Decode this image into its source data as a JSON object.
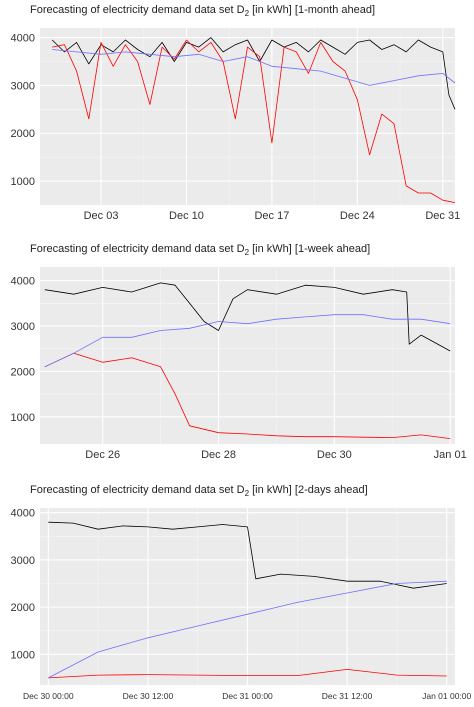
{
  "chart_data": [
    {
      "type": "line",
      "title": "Forecasting of electricity demand data set D",
      "title_sub": "2",
      "title_rest": " [in kWh] [1-month ahead]",
      "x_type": "date",
      "xlim": [
        "2023-11-28",
        "2024-01-01"
      ],
      "xticks": [
        "2023-12-03",
        "2023-12-10",
        "2023-12-17",
        "2023-12-24",
        "2023-12-31"
      ],
      "xtick_labels": [
        "Dec 03",
        "Dec 10",
        "Dec 17",
        "Dec 24",
        "Dec 31"
      ],
      "ylim": [
        500,
        4200
      ],
      "yticks": [
        1000,
        2000,
        3000,
        4000
      ],
      "grid": true,
      "legend": "none",
      "series": [
        {
          "color": "#000000",
          "points": [
            [
              "2023-11-29",
              3950
            ],
            [
              "2023-11-30",
              3700
            ],
            [
              "2023-12-01",
              3900
            ],
            [
              "2023-12-02",
              3450
            ],
            [
              "2023-12-03",
              3850
            ],
            [
              "2023-12-04",
              3700
            ],
            [
              "2023-12-05",
              3950
            ],
            [
              "2023-12-06",
              3750
            ],
            [
              "2023-12-07",
              3600
            ],
            [
              "2023-12-08",
              3900
            ],
            [
              "2023-12-09",
              3500
            ],
            [
              "2023-12-10",
              3900
            ],
            [
              "2023-12-11",
              3800
            ],
            [
              "2023-12-12",
              4000
            ],
            [
              "2023-12-13",
              3700
            ],
            [
              "2023-12-14",
              3850
            ],
            [
              "2023-12-15",
              3950
            ],
            [
              "2023-12-16",
              3500
            ],
            [
              "2023-12-17",
              3950
            ],
            [
              "2023-12-18",
              3800
            ],
            [
              "2023-12-19",
              3900
            ],
            [
              "2023-12-20",
              3700
            ],
            [
              "2023-12-21",
              3950
            ],
            [
              "2023-12-22",
              3800
            ],
            [
              "2023-12-23",
              3650
            ],
            [
              "2023-12-24",
              3900
            ],
            [
              "2023-12-25",
              3950
            ],
            [
              "2023-12-26",
              3750
            ],
            [
              "2023-12-27",
              3850
            ],
            [
              "2023-12-28",
              3700
            ],
            [
              "2023-12-29",
              3950
            ],
            [
              "2023-12-30",
              3800
            ],
            [
              "2023-12-31",
              3700
            ],
            [
              "2023-12-31T12:00",
              2800
            ],
            [
              "2024-01-01",
              2500
            ]
          ]
        },
        {
          "color": "#ff0000",
          "points": [
            [
              "2023-11-29",
              3800
            ],
            [
              "2023-11-30",
              3850
            ],
            [
              "2023-12-01",
              3300
            ],
            [
              "2023-12-02",
              2300
            ],
            [
              "2023-12-03",
              3900
            ],
            [
              "2023-12-04",
              3400
            ],
            [
              "2023-12-05",
              3850
            ],
            [
              "2023-12-06",
              3500
            ],
            [
              "2023-12-07",
              2600
            ],
            [
              "2023-12-08",
              3800
            ],
            [
              "2023-12-09",
              3550
            ],
            [
              "2023-12-10",
              3950
            ],
            [
              "2023-12-11",
              3700
            ],
            [
              "2023-12-12",
              3900
            ],
            [
              "2023-12-13",
              3500
            ],
            [
              "2023-12-14",
              2300
            ],
            [
              "2023-12-15",
              3800
            ],
            [
              "2023-12-16",
              3600
            ],
            [
              "2023-12-17",
              1800
            ],
            [
              "2023-12-18",
              3800
            ],
            [
              "2023-12-19",
              3700
            ],
            [
              "2023-12-20",
              3250
            ],
            [
              "2023-12-21",
              3900
            ],
            [
              "2023-12-22",
              3500
            ],
            [
              "2023-12-23",
              3300
            ],
            [
              "2023-12-24",
              2700
            ],
            [
              "2023-12-25",
              1550
            ],
            [
              "2023-12-26",
              2400
            ],
            [
              "2023-12-27",
              2200
            ],
            [
              "2023-12-28",
              900
            ],
            [
              "2023-12-29",
              750
            ],
            [
              "2023-12-30",
              750
            ],
            [
              "2023-12-31",
              600
            ],
            [
              "2024-01-01",
              550
            ]
          ]
        },
        {
          "color": "#7070ff",
          "points": [
            [
              "2023-11-29",
              3750
            ],
            [
              "2023-12-01",
              3700
            ],
            [
              "2023-12-03",
              3650
            ],
            [
              "2023-12-05",
              3700
            ],
            [
              "2023-12-07",
              3650
            ],
            [
              "2023-12-09",
              3600
            ],
            [
              "2023-12-11",
              3650
            ],
            [
              "2023-12-13",
              3500
            ],
            [
              "2023-12-15",
              3600
            ],
            [
              "2023-12-17",
              3400
            ],
            [
              "2023-12-19",
              3350
            ],
            [
              "2023-12-21",
              3300
            ],
            [
              "2023-12-23",
              3150
            ],
            [
              "2023-12-25",
              3000
            ],
            [
              "2023-12-27",
              3100
            ],
            [
              "2023-12-29",
              3200
            ],
            [
              "2023-12-31",
              3250
            ],
            [
              "2024-01-01",
              3050
            ]
          ]
        }
      ]
    },
    {
      "type": "line",
      "title": "Forecasting of electricity demand data set D",
      "title_sub": "2",
      "title_rest": " [in kWh] [1-week ahead]",
      "x_type": "date",
      "xlim": [
        "2023-12-24T22:00",
        "2024-01-01T02:00"
      ],
      "xticks": [
        "2023-12-26",
        "2023-12-28",
        "2023-12-30",
        "2024-01-01"
      ],
      "xtick_labels": [
        "Dec 26",
        "Dec 28",
        "Dec 30",
        "Jan 01"
      ],
      "ylim": [
        400,
        4300
      ],
      "yticks": [
        1000,
        2000,
        3000,
        4000
      ],
      "grid": true,
      "legend": "none",
      "series": [
        {
          "color": "#000000",
          "points": [
            [
              "2023-12-25",
              3800
            ],
            [
              "2023-12-25T12:00",
              3700
            ],
            [
              "2023-12-26",
              3850
            ],
            [
              "2023-12-26T12:00",
              3750
            ],
            [
              "2023-12-27",
              3950
            ],
            [
              "2023-12-27T06:00",
              3900
            ],
            [
              "2023-12-27T12:00",
              3500
            ],
            [
              "2023-12-27T18:00",
              3100
            ],
            [
              "2023-12-28",
              2900
            ],
            [
              "2023-12-28T06:00",
              3600
            ],
            [
              "2023-12-28T12:00",
              3800
            ],
            [
              "2023-12-29",
              3700
            ],
            [
              "2023-12-29T12:00",
              3900
            ],
            [
              "2023-12-30",
              3850
            ],
            [
              "2023-12-30T12:00",
              3700
            ],
            [
              "2023-12-31",
              3800
            ],
            [
              "2023-12-31T06:00",
              3750
            ],
            [
              "2023-12-31T07:00",
              2600
            ],
            [
              "2023-12-31T12:00",
              2800
            ],
            [
              "2024-01-01",
              2450
            ]
          ]
        },
        {
          "color": "#ff0000",
          "points": [
            [
              "2023-12-25",
              2100
            ],
            [
              "2023-12-25T12:00",
              2400
            ],
            [
              "2023-12-26",
              2200
            ],
            [
              "2023-12-26T12:00",
              2300
            ],
            [
              "2023-12-27",
              2100
            ],
            [
              "2023-12-27T06:00",
              1500
            ],
            [
              "2023-12-27T12:00",
              800
            ],
            [
              "2023-12-28",
              650
            ],
            [
              "2023-12-28T12:00",
              620
            ],
            [
              "2023-12-29",
              580
            ],
            [
              "2023-12-29T12:00",
              560
            ],
            [
              "2023-12-30",
              560
            ],
            [
              "2023-12-30T12:00",
              550
            ],
            [
              "2023-12-31",
              540
            ],
            [
              "2023-12-31T12:00",
              600
            ],
            [
              "2024-01-01",
              520
            ]
          ]
        },
        {
          "color": "#7070ff",
          "points": [
            [
              "2023-12-25",
              2100
            ],
            [
              "2023-12-25T12:00",
              2400
            ],
            [
              "2023-12-26",
              2750
            ],
            [
              "2023-12-26T12:00",
              2750
            ],
            [
              "2023-12-27",
              2900
            ],
            [
              "2023-12-27T12:00",
              2950
            ],
            [
              "2023-12-28",
              3100
            ],
            [
              "2023-12-28T12:00",
              3050
            ],
            [
              "2023-12-29",
              3150
            ],
            [
              "2023-12-29T12:00",
              3200
            ],
            [
              "2023-12-30",
              3250
            ],
            [
              "2023-12-30T12:00",
              3250
            ],
            [
              "2023-12-31",
              3150
            ],
            [
              "2023-12-31T12:00",
              3150
            ],
            [
              "2024-01-01",
              3050
            ]
          ]
        }
      ]
    },
    {
      "type": "line",
      "title": "Forecasting of electricity demand data set D",
      "title_sub": "2",
      "title_rest": " [in kWh] [2-days ahead]",
      "x_type": "datetime",
      "xlim": [
        "2023-12-29T23:00",
        "2024-01-01T01:00"
      ],
      "xticks": [
        "2023-12-30T00:00",
        "2023-12-30T12:00",
        "2023-12-31T00:00",
        "2023-12-31T12:00",
        "2024-01-01T00:00"
      ],
      "xtick_labels": [
        "Dec 30 00:00",
        "Dec 30 12:00",
        "Dec 31 00:00",
        "Dec 31 12:00",
        "Jan 01 00:00"
      ],
      "ylim": [
        350,
        4100
      ],
      "yticks": [
        1000,
        2000,
        3000,
        4000
      ],
      "grid": true,
      "legend": "none",
      "series": [
        {
          "color": "#000000",
          "points": [
            [
              "2023-12-30T00:00",
              3800
            ],
            [
              "2023-12-30T03:00",
              3780
            ],
            [
              "2023-12-30T06:00",
              3650
            ],
            [
              "2023-12-30T09:00",
              3720
            ],
            [
              "2023-12-30T12:00",
              3700
            ],
            [
              "2023-12-30T15:00",
              3650
            ],
            [
              "2023-12-30T18:00",
              3700
            ],
            [
              "2023-12-30T21:00",
              3750
            ],
            [
              "2023-12-31T00:00",
              3700
            ],
            [
              "2023-12-31T01:00",
              2600
            ],
            [
              "2023-12-31T04:00",
              2700
            ],
            [
              "2023-12-31T08:00",
              2650
            ],
            [
              "2023-12-31T12:00",
              2550
            ],
            [
              "2023-12-31T16:00",
              2550
            ],
            [
              "2023-12-31T20:00",
              2400
            ],
            [
              "2024-01-01T00:00",
              2500
            ]
          ]
        },
        {
          "color": "#ff0000",
          "points": [
            [
              "2023-12-30T00:00",
              500
            ],
            [
              "2023-12-30T06:00",
              560
            ],
            [
              "2023-12-30T12:00",
              570
            ],
            [
              "2023-12-30T18:00",
              560
            ],
            [
              "2023-12-31T00:00",
              550
            ],
            [
              "2023-12-31T06:00",
              550
            ],
            [
              "2023-12-31T12:00",
              680
            ],
            [
              "2023-12-31T18:00",
              560
            ],
            [
              "2024-01-01T00:00",
              540
            ]
          ]
        },
        {
          "color": "#7070ff",
          "points": [
            [
              "2023-12-30T00:00",
              500
            ],
            [
              "2023-12-30T06:00",
              1050
            ],
            [
              "2023-12-30T12:00",
              1350
            ],
            [
              "2023-12-30T18:00",
              1600
            ],
            [
              "2023-12-31T00:00",
              1850
            ],
            [
              "2023-12-31T06:00",
              2100
            ],
            [
              "2023-12-31T12:00",
              2300
            ],
            [
              "2023-12-31T18:00",
              2500
            ],
            [
              "2024-01-01T00:00",
              2550
            ]
          ]
        }
      ]
    }
  ]
}
